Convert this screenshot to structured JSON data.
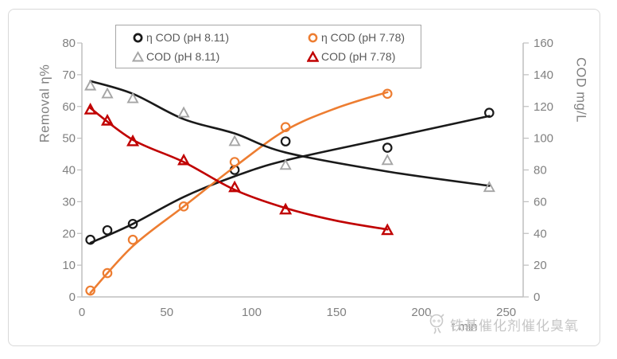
{
  "colors": {
    "background": "#FFFFFF",
    "frame_border": "#D9D9D9",
    "axis_line": "#BFBFBF",
    "tick_text": "#808080",
    "axis_title_text": "#7F7F7F",
    "legend_text": "#595959",
    "legend_border": "#A6A6A6",
    "watermark_text": "#C6C6C6",
    "series_black": "#1A1A1A",
    "series_orange": "#ED7D31",
    "series_gray": "#A5A5A5",
    "series_red": "#C00000"
  },
  "watermark": {
    "text": "铁基催化剂催化臭氧",
    "icon": "mascot-doodle-icon"
  },
  "chart_data": {
    "type": "scatter",
    "title": "",
    "grid": false,
    "legend": {
      "position": "top",
      "rows": 2,
      "border": true
    },
    "x_axis": {
      "label": "t min",
      "ticks": [
        0,
        50,
        100,
        150,
        200,
        250
      ],
      "range": [
        0,
        260
      ]
    },
    "y_axis_left": {
      "label": "Removal η%",
      "ticks": [
        0,
        10,
        20,
        30,
        40,
        50,
        60,
        70,
        80
      ],
      "range": [
        0,
        80
      ]
    },
    "y_axis_right": {
      "label": "COD mg/L",
      "ticks": [
        0,
        20,
        40,
        60,
        80,
        100,
        120,
        140,
        160
      ],
      "range": [
        0,
        160
      ]
    },
    "series": [
      {
        "name": "η COD (pH 8.11)",
        "axis": "left",
        "marker": "circle",
        "color": "#1A1A1A",
        "trend_color": "#1A1A1A",
        "x": [
          5,
          15,
          30,
          90,
          120,
          180,
          240
        ],
        "y": [
          18,
          21,
          23,
          40,
          49,
          47,
          58
        ],
        "trend": [
          [
            5,
            17
          ],
          [
            30,
            23
          ],
          [
            60,
            31.5
          ],
          [
            90,
            38
          ],
          [
            120,
            43
          ],
          [
            180,
            50
          ],
          [
            240,
            57
          ]
        ]
      },
      {
        "name": "η COD (pH 7.78)",
        "axis": "left",
        "marker": "circle",
        "color": "#ED7D31",
        "trend_color": "#ED7D31",
        "x": [
          5,
          15,
          30,
          60,
          90,
          120,
          180
        ],
        "y": [
          2,
          7.5,
          18,
          28.5,
          42.5,
          53.5,
          64
        ],
        "trend": [
          [
            5,
            1.3
          ],
          [
            30,
            16
          ],
          [
            60,
            28.5
          ],
          [
            90,
            41
          ],
          [
            120,
            52.5
          ],
          [
            150,
            59.5
          ],
          [
            180,
            64.5
          ]
        ]
      },
      {
        "name": "COD (pH 8.11)",
        "axis": "right",
        "marker": "triangle",
        "color": "#A5A5A5",
        "trend_color": "#1A1A1A",
        "x": [
          5,
          15,
          30,
          60,
          90,
          120,
          180,
          240
        ],
        "y": [
          133,
          128,
          125,
          116,
          98,
          83,
          86,
          69
        ],
        "trend": [
          [
            5,
            136
          ],
          [
            30,
            128
          ],
          [
            60,
            112
          ],
          [
            90,
            103
          ],
          [
            120,
            91
          ],
          [
            180,
            79
          ],
          [
            240,
            70
          ]
        ]
      },
      {
        "name": "COD (pH 7.78)",
        "axis": "right",
        "marker": "triangle",
        "color": "#C00000",
        "trend_color": "#C00000",
        "x": [
          5,
          15,
          30,
          60,
          90,
          120,
          180
        ],
        "y": [
          118,
          111,
          98,
          86,
          69,
          55,
          42
        ],
        "trend": [
          [
            5,
            119
          ],
          [
            30,
            99
          ],
          [
            60,
            85
          ],
          [
            90,
            67.5
          ],
          [
            120,
            56
          ],
          [
            150,
            48
          ],
          [
            180,
            42.5
          ]
        ]
      }
    ]
  }
}
